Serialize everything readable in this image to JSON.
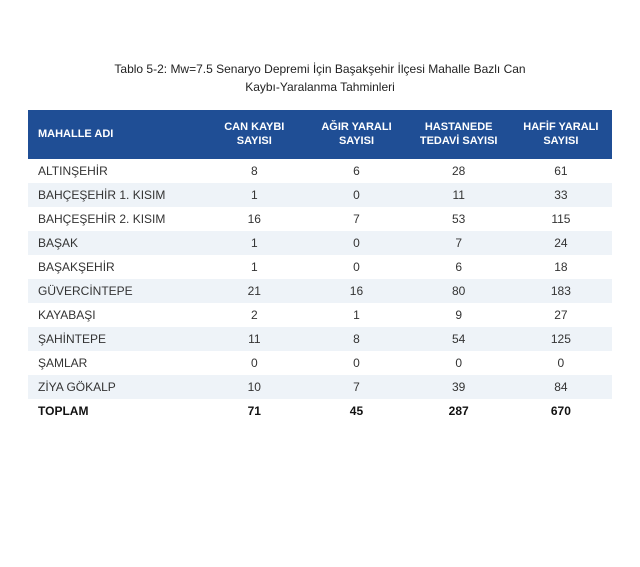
{
  "caption_line1": "Tablo 5-2: Mw=7.5 Senaryo Depremi İçin Başakşehir İlçesi Mahalle Bazlı Can",
  "caption_line2": "Kaybı-Yaralanma Tahminleri",
  "headers": {
    "c0": "MAHALLE ADI",
    "c1": "CAN KAYBI SAYISI",
    "c2": "AĞIR YARALI SAYISI",
    "c3": "HASTANEDE TEDAVİ SAYISI",
    "c4": "HAFİF YARALI SAYISI"
  },
  "rows": {
    "r0": {
      "c0": "ALTINŞEHİR",
      "c1": "8",
      "c2": "6",
      "c3": "28",
      "c4": "61"
    },
    "r1": {
      "c0": "BAHÇEŞEHİR 1. KISIM",
      "c1": "1",
      "c2": "0",
      "c3": "11",
      "c4": "33"
    },
    "r2": {
      "c0": "BAHÇEŞEHİR 2. KISIM",
      "c1": "16",
      "c2": "7",
      "c3": "53",
      "c4": "115"
    },
    "r3": {
      "c0": "BAŞAK",
      "c1": "1",
      "c2": "0",
      "c3": "7",
      "c4": "24"
    },
    "r4": {
      "c0": "BAŞAKŞEHİR",
      "c1": "1",
      "c2": "0",
      "c3": "6",
      "c4": "18"
    },
    "r5": {
      "c0": "GÜVERCİNTEPE",
      "c1": "21",
      "c2": "16",
      "c3": "80",
      "c4": "183"
    },
    "r6": {
      "c0": "KAYABAŞI",
      "c1": "2",
      "c2": "1",
      "c3": "9",
      "c4": "27"
    },
    "r7": {
      "c0": "ŞAHİNTEPE",
      "c1": "11",
      "c2": "8",
      "c3": "54",
      "c4": "125"
    },
    "r8": {
      "c0": "ŞAMLAR",
      "c1": "0",
      "c2": "0",
      "c3": "0",
      "c4": "0"
    },
    "r9": {
      "c0": "ZİYA GÖKALP",
      "c1": "10",
      "c2": "7",
      "c3": "39",
      "c4": "84"
    },
    "r10": {
      "c0": "TOPLAM",
      "c1": "71",
      "c2": "45",
      "c3": "287",
      "c4": "670"
    }
  },
  "colors": {
    "header_bg": "#1f4e95",
    "header_fg": "#ffffff",
    "row_alt_bg": "#eef3f8",
    "page_bg": "#ffffff",
    "text": "#333333"
  }
}
